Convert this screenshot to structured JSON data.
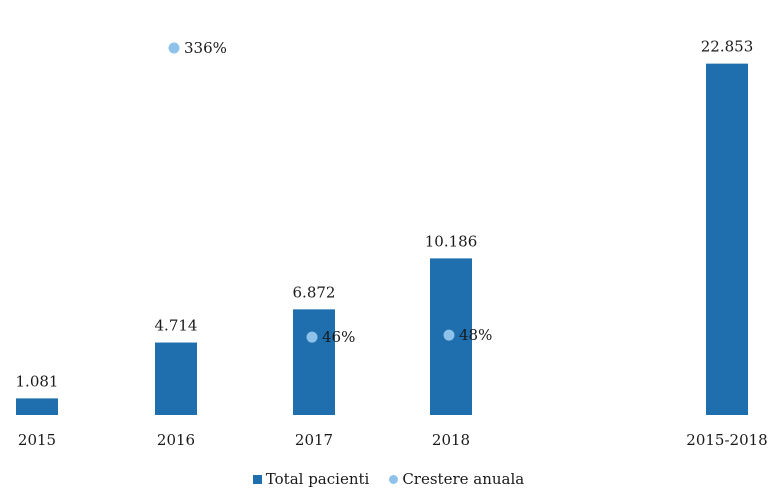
{
  "chart_data": {
    "type": "bar",
    "categories": [
      "2015",
      "2016",
      "2017",
      "2018",
      "2015-2018"
    ],
    "series": [
      {
        "name": "Total pacienti",
        "values": [
          1081,
          4714,
          6872,
          10186,
          22853
        ],
        "labels": [
          "1.081",
          "4.714",
          "6.872",
          "10.186",
          "22.853"
        ],
        "color": "#1f6fae"
      },
      {
        "name": "Crestere anuala",
        "values": [
          null,
          336,
          46,
          48,
          null
        ],
        "labels": [
          "",
          "336%",
          "46%",
          "48%",
          ""
        ],
        "unit": "%",
        "color": "#8ec2ea"
      }
    ],
    "title": "",
    "xlabel": "",
    "ylabel": "",
    "ylim": [
      0,
      24000
    ],
    "y2lim": [
      0,
      400
    ],
    "grid": false,
    "legend": "bottom-center"
  }
}
